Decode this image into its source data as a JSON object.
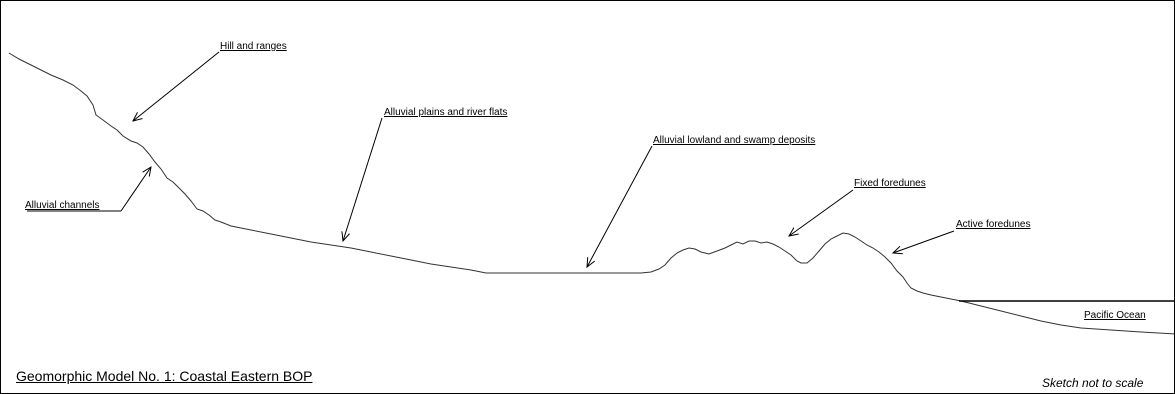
{
  "labels": {
    "hill": "Hill and ranges",
    "plains": "Alluvial plains and river flats",
    "lowland": "Alluvial lowland and swamp deposits",
    "fixed": "Fixed foredunes",
    "active": "Active foredunes",
    "channels": "Alluvial channels",
    "ocean": "Pacific Ocean"
  },
  "title": "Geomorphic Model No. 1: Coastal Eastern BOP",
  "note": "Sketch not to scale"
}
